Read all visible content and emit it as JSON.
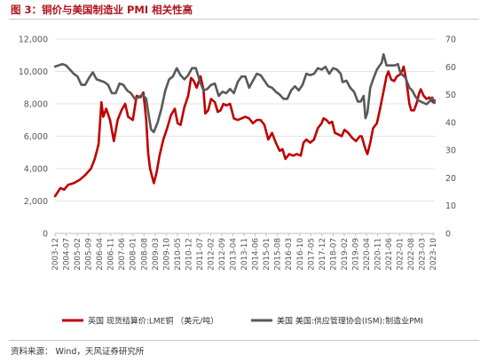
{
  "page": {
    "title": "图 3：铜价与美国制造业 PMI 相关性高",
    "source": "资料来源： Wind，天风证券研究所"
  },
  "chart_data": {
    "type": "line",
    "y_left": {
      "min": 0,
      "max": 12000,
      "ticks": [
        "0",
        "2,000",
        "4,000",
        "6,000",
        "8,000",
        "10,000",
        "12,000"
      ]
    },
    "y_right": {
      "min": 0,
      "max": 70,
      "ticks": [
        "0",
        "10",
        "20",
        "30",
        "40",
        "50",
        "60",
        "70"
      ]
    },
    "x_range": [
      2003.917,
      2023.833
    ],
    "x_ticks": [
      "2003-12",
      "2004-07",
      "2005-02",
      "2005-09",
      "2006-04",
      "2006-11",
      "2007-06",
      "2008-01",
      "2008-08",
      "2009-03",
      "2009-10",
      "2010-05",
      "2010-12",
      "2011-07",
      "2012-02",
      "2012-09",
      "2013-04",
      "2013-11",
      "2014-06",
      "2015-01",
      "2015-08",
      "2016-03",
      "2016-10",
      "2017-05",
      "2017-12",
      "2018-07",
      "2019-02",
      "2019-09",
      "2020-04",
      "2020-11",
      "2021-06",
      "2022-01",
      "2022-08",
      "2023-03",
      "2023-10"
    ],
    "gridlines": true,
    "legend_position": "bottom",
    "series": [
      {
        "name": "英国 现货结算价:LME铜 （美元/吨）",
        "axis": "left",
        "color": "#c00000",
        "points": [
          [
            2003.92,
            2300
          ],
          [
            2004.2,
            2800
          ],
          [
            2004.4,
            2700
          ],
          [
            2004.6,
            3000
          ],
          [
            2004.9,
            3100
          ],
          [
            2005.2,
            3300
          ],
          [
            2005.5,
            3600
          ],
          [
            2005.8,
            4000
          ],
          [
            2006.0,
            4600
          ],
          [
            2006.2,
            5500
          ],
          [
            2006.35,
            8100
          ],
          [
            2006.45,
            7200
          ],
          [
            2006.6,
            7700
          ],
          [
            2006.8,
            7000
          ],
          [
            2007.0,
            5700
          ],
          [
            2007.2,
            7000
          ],
          [
            2007.4,
            7600
          ],
          [
            2007.6,
            8000
          ],
          [
            2007.75,
            7200
          ],
          [
            2008.0,
            7000
          ],
          [
            2008.2,
            8500
          ],
          [
            2008.4,
            8400
          ],
          [
            2008.55,
            8700
          ],
          [
            2008.7,
            7000
          ],
          [
            2008.8,
            5000
          ],
          [
            2008.9,
            4000
          ],
          [
            2009.1,
            3100
          ],
          [
            2009.25,
            3800
          ],
          [
            2009.4,
            4800
          ],
          [
            2009.6,
            5800
          ],
          [
            2009.8,
            6500
          ],
          [
            2010.0,
            7300
          ],
          [
            2010.2,
            7700
          ],
          [
            2010.35,
            6800
          ],
          [
            2010.5,
            6700
          ],
          [
            2010.7,
            7800
          ],
          [
            2010.9,
            8500
          ],
          [
            2011.05,
            9600
          ],
          [
            2011.2,
            9400
          ],
          [
            2011.35,
            9000
          ],
          [
            2011.55,
            9700
          ],
          [
            2011.7,
            8900
          ],
          [
            2011.8,
            7400
          ],
          [
            2011.95,
            7600
          ],
          [
            2012.1,
            8300
          ],
          [
            2012.3,
            8100
          ],
          [
            2012.45,
            7500
          ],
          [
            2012.6,
            7600
          ],
          [
            2012.75,
            8000
          ],
          [
            2012.9,
            7900
          ],
          [
            2013.1,
            8000
          ],
          [
            2013.3,
            7100
          ],
          [
            2013.5,
            7000
          ],
          [
            2013.7,
            7100
          ],
          [
            2013.9,
            7200
          ],
          [
            2014.1,
            7100
          ],
          [
            2014.3,
            6800
          ],
          [
            2014.5,
            7000
          ],
          [
            2014.7,
            7000
          ],
          [
            2014.9,
            6700
          ],
          [
            2015.1,
            5800
          ],
          [
            2015.3,
            6200
          ],
          [
            2015.5,
            5600
          ],
          [
            2015.7,
            5100
          ],
          [
            2015.85,
            5200
          ],
          [
            2016.0,
            4600
          ],
          [
            2016.2,
            4900
          ],
          [
            2016.4,
            4800
          ],
          [
            2016.6,
            4900
          ],
          [
            2016.8,
            4800
          ],
          [
            2016.95,
            5600
          ],
          [
            2017.1,
            5800
          ],
          [
            2017.3,
            5600
          ],
          [
            2017.5,
            5800
          ],
          [
            2017.7,
            6500
          ],
          [
            2017.9,
            6800
          ],
          [
            2018.0,
            7100
          ],
          [
            2018.15,
            7000
          ],
          [
            2018.3,
            6800
          ],
          [
            2018.45,
            6900
          ],
          [
            2018.6,
            6200
          ],
          [
            2018.8,
            6100
          ],
          [
            2018.95,
            6000
          ],
          [
            2019.1,
            6400
          ],
          [
            2019.3,
            6200
          ],
          [
            2019.5,
            5900
          ],
          [
            2019.7,
            5700
          ],
          [
            2019.9,
            6000
          ],
          [
            2020.0,
            6000
          ],
          [
            2020.2,
            5200
          ],
          [
            2020.3,
            4900
          ],
          [
            2020.45,
            5600
          ],
          [
            2020.6,
            6500
          ],
          [
            2020.8,
            6800
          ],
          [
            2020.95,
            7600
          ],
          [
            2021.1,
            8500
          ],
          [
            2021.3,
            9700
          ],
          [
            2021.4,
            10000
          ],
          [
            2021.55,
            9500
          ],
          [
            2021.7,
            9400
          ],
          [
            2021.85,
            9700
          ],
          [
            2022.0,
            9800
          ],
          [
            2022.15,
            10100
          ],
          [
            2022.2,
            10300
          ],
          [
            2022.35,
            9400
          ],
          [
            2022.5,
            8000
          ],
          [
            2022.6,
            7600
          ],
          [
            2022.75,
            7600
          ],
          [
            2022.9,
            8100
          ],
          [
            2023.0,
            8600
          ],
          [
            2023.1,
            8900
          ],
          [
            2023.25,
            8500
          ],
          [
            2023.4,
            8300
          ],
          [
            2023.55,
            8400
          ],
          [
            2023.65,
            8200
          ],
          [
            2023.75,
            8100
          ],
          [
            2023.83,
            8200
          ]
        ]
      },
      {
        "name": "美国 美国:供应管理协会(ISM):制造业PMI",
        "axis": "right",
        "color": "#595959",
        "points": [
          [
            2003.92,
            60.1
          ],
          [
            2004.1,
            60.5
          ],
          [
            2004.3,
            61.0
          ],
          [
            2004.5,
            60.5
          ],
          [
            2004.7,
            59.0
          ],
          [
            2004.9,
            57.5
          ],
          [
            2005.1,
            56.5
          ],
          [
            2005.3,
            53.5
          ],
          [
            2005.5,
            53.5
          ],
          [
            2005.7,
            56.0
          ],
          [
            2005.9,
            58.0
          ],
          [
            2006.1,
            55.5
          ],
          [
            2006.3,
            55.0
          ],
          [
            2006.5,
            54.5
          ],
          [
            2006.7,
            53.5
          ],
          [
            2006.9,
            50.5
          ],
          [
            2007.1,
            50.5
          ],
          [
            2007.3,
            54.0
          ],
          [
            2007.5,
            53.5
          ],
          [
            2007.7,
            51.5
          ],
          [
            2007.9,
            50.5
          ],
          [
            2008.1,
            48.5
          ],
          [
            2008.3,
            49.0
          ],
          [
            2008.5,
            50.0
          ],
          [
            2008.7,
            48.5
          ],
          [
            2008.8,
            44.0
          ],
          [
            2008.95,
            37.5
          ],
          [
            2009.1,
            36.5
          ],
          [
            2009.3,
            40.0
          ],
          [
            2009.5,
            45.0
          ],
          [
            2009.7,
            51.5
          ],
          [
            2009.9,
            55.5
          ],
          [
            2010.1,
            56.5
          ],
          [
            2010.3,
            59.5
          ],
          [
            2010.5,
            57.0
          ],
          [
            2010.7,
            55.5
          ],
          [
            2010.9,
            57.0
          ],
          [
            2011.1,
            59.5
          ],
          [
            2011.3,
            59.5
          ],
          [
            2011.5,
            55.0
          ],
          [
            2011.7,
            51.5
          ],
          [
            2011.9,
            52.0
          ],
          [
            2012.1,
            53.5
          ],
          [
            2012.3,
            54.0
          ],
          [
            2012.5,
            49.5
          ],
          [
            2012.7,
            51.0
          ],
          [
            2012.9,
            50.5
          ],
          [
            2013.1,
            52.0
          ],
          [
            2013.3,
            50.5
          ],
          [
            2013.5,
            54.5
          ],
          [
            2013.7,
            56.5
          ],
          [
            2013.9,
            56.5
          ],
          [
            2014.1,
            52.5
          ],
          [
            2014.3,
            55.0
          ],
          [
            2014.5,
            57.5
          ],
          [
            2014.7,
            57.0
          ],
          [
            2014.9,
            55.0
          ],
          [
            2015.1,
            53.0
          ],
          [
            2015.3,
            52.5
          ],
          [
            2015.5,
            51.0
          ],
          [
            2015.7,
            50.0
          ],
          [
            2015.9,
            48.5
          ],
          [
            2016.1,
            48.5
          ],
          [
            2016.3,
            51.5
          ],
          [
            2016.5,
            53.0
          ],
          [
            2016.7,
            51.5
          ],
          [
            2016.9,
            53.5
          ],
          [
            2017.1,
            57.5
          ],
          [
            2017.3,
            57.0
          ],
          [
            2017.5,
            57.5
          ],
          [
            2017.7,
            59.5
          ],
          [
            2017.9,
            59.0
          ],
          [
            2018.1,
            60.0
          ],
          [
            2018.3,
            57.5
          ],
          [
            2018.5,
            59.5
          ],
          [
            2018.7,
            59.0
          ],
          [
            2018.9,
            57.5
          ],
          [
            2019.0,
            54.5
          ],
          [
            2019.2,
            55.0
          ],
          [
            2019.4,
            52.5
          ],
          [
            2019.6,
            51.0
          ],
          [
            2019.8,
            47.5
          ],
          [
            2019.95,
            47.5
          ],
          [
            2020.1,
            49.5
          ],
          [
            2020.2,
            41.5
          ],
          [
            2020.3,
            43.5
          ],
          [
            2020.45,
            52.5
          ],
          [
            2020.6,
            55.5
          ],
          [
            2020.8,
            59.0
          ],
          [
            2020.95,
            60.5
          ],
          [
            2021.05,
            61.5
          ],
          [
            2021.15,
            64.5
          ],
          [
            2021.3,
            60.5
          ],
          [
            2021.45,
            60.5
          ],
          [
            2021.6,
            60.5
          ],
          [
            2021.75,
            60.5
          ],
          [
            2021.9,
            61.0
          ],
          [
            2022.0,
            58.5
          ],
          [
            2022.15,
            57.0
          ],
          [
            2022.3,
            56.0
          ],
          [
            2022.5,
            52.5
          ],
          [
            2022.65,
            51.5
          ],
          [
            2022.8,
            49.5
          ],
          [
            2022.95,
            48.0
          ],
          [
            2023.1,
            47.5
          ],
          [
            2023.25,
            47.0
          ],
          [
            2023.4,
            46.5
          ],
          [
            2023.55,
            47.5
          ],
          [
            2023.7,
            49.0
          ],
          [
            2023.83,
            47.0
          ]
        ]
      }
    ]
  }
}
